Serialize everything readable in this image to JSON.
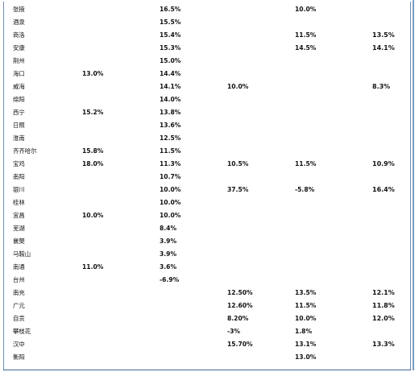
{
  "table": {
    "rows": [
      {
        "city": "张掖",
        "c1": "",
        "c2": "16.5%",
        "c3": "",
        "c4": "10.0%",
        "c5": ""
      },
      {
        "city": "酒泉",
        "c1": "",
        "c2": "15.5%",
        "c3": "",
        "c4": "",
        "c5": ""
      },
      {
        "city": "商洛",
        "c1": "",
        "c2": "15.4%",
        "c3": "",
        "c4": "11.5%",
        "c5": "13.5%"
      },
      {
        "city": "安康",
        "c1": "",
        "c2": "15.3%",
        "c3": "",
        "c4": "14.5%",
        "c5": "14.1%"
      },
      {
        "city": "荆州",
        "c1": "",
        "c2": "15.0%",
        "c3": "",
        "c4": "",
        "c5": ""
      },
      {
        "city": "海口",
        "c1": "13.0%",
        "c2": "14.4%",
        "c3": "",
        "c4": "",
        "c5": ""
      },
      {
        "city": "威海",
        "c1": "",
        "c2": "14.1%",
        "c3": "10.0%",
        "c4": "",
        "c5": "8.3%"
      },
      {
        "city": "绵阳",
        "c1": "",
        "c2": "14.0%",
        "c3": "",
        "c4": "",
        "c5": ""
      },
      {
        "city": "西宁",
        "c1": "15.2%",
        "c2": "13.8%",
        "c3": "",
        "c4": "",
        "c5": ""
      },
      {
        "city": "日照",
        "c1": "",
        "c2": "13.6%",
        "c3": "",
        "c4": "",
        "c5": ""
      },
      {
        "city": "淮南",
        "c1": "",
        "c2": "12.5%",
        "c3": "",
        "c4": "",
        "c5": ""
      },
      {
        "city": "齐齐哈尔",
        "c1": "15.8%",
        "c2": "11.5%",
        "c3": "",
        "c4": "",
        "c5": ""
      },
      {
        "city": "宝鸡",
        "c1": "18.0%",
        "c2": "11.3%",
        "c3": "10.5%",
        "c4": "11.5%",
        "c5": "10.9%"
      },
      {
        "city": "南阳",
        "c1": "",
        "c2": "10.7%",
        "c3": "",
        "c4": "",
        "c5": ""
      },
      {
        "city": "银川",
        "c1": "",
        "c2": "10.0%",
        "c3": "37.5%",
        "c4": "-5.8%",
        "c5": "16.4%"
      },
      {
        "city": "桂林",
        "c1": "",
        "c2": "10.0%",
        "c3": "",
        "c4": "",
        "c5": ""
      },
      {
        "city": "宜昌",
        "c1": "10.0%",
        "c2": "10.0%",
        "c3": "",
        "c4": "",
        "c5": ""
      },
      {
        "city": "芜湖",
        "c1": "",
        "c2": "8.4%",
        "c3": "",
        "c4": "",
        "c5": ""
      },
      {
        "city": "襄樊",
        "c1": "",
        "c2": "3.9%",
        "c3": "",
        "c4": "",
        "c5": ""
      },
      {
        "city": "马鞍山",
        "c1": "",
        "c2": "3.9%",
        "c3": "",
        "c4": "",
        "c5": ""
      },
      {
        "city": "南通",
        "c1": "11.0%",
        "c2": "3.6%",
        "c3": "",
        "c4": "",
        "c5": ""
      },
      {
        "city": "台州",
        "c1": "",
        "c2": "-6.9%",
        "c3": "",
        "c4": "",
        "c5": ""
      },
      {
        "city": "南充",
        "c1": "",
        "c2": "",
        "c3": "12.50%",
        "c4": "13.5%",
        "c5": "12.1%"
      },
      {
        "city": "广元",
        "c1": "",
        "c2": "",
        "c3": "12.60%",
        "c4": "11.5%",
        "c5": "11.8%"
      },
      {
        "city": "自贡",
        "c1": "",
        "c2": "",
        "c3": "8.20%",
        "c4": "10.0%",
        "c5": "12.0%"
      },
      {
        "city": "攀枝花",
        "c1": "",
        "c2": "",
        "c3": "-3%",
        "c4": "1.8%",
        "c5": ""
      },
      {
        "city": "汉中",
        "c1": "",
        "c2": "",
        "c3": "15.70%",
        "c4": "13.1%",
        "c5": "13.3%"
      },
      {
        "city": "衡阳",
        "c1": "",
        "c2": "",
        "c3": "",
        "c4": "13.0%",
        "c5": ""
      }
    ]
  }
}
